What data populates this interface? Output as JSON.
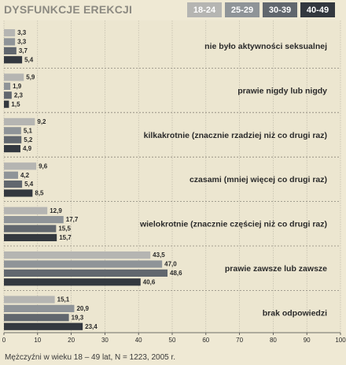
{
  "chart_data": {
    "type": "bar",
    "orientation": "horizontal",
    "title": "DYSFUNKCJE EREKCJI",
    "note": "Mężczyźni w wieku 18 – 49 lat, N = 1223, 2005 r.",
    "categories": [
      "nie było aktywności seksualnej",
      "prawie nigdy lub nigdy",
      "kilkakrotnie (znacznie rzadziej niż co drugi raz)",
      "czasami (mniej więcej co drugi raz)",
      "wielokrotnie (znacznie częściej niż co drugi raz)",
      "prawie zawsze lub zawsze",
      "brak odpowiedzi"
    ],
    "series": [
      {
        "name": "18-24",
        "color": "#b5b5b2",
        "values": [
          3.3,
          5.9,
          9.2,
          9.6,
          12.9,
          43.5,
          15.1
        ]
      },
      {
        "name": "25-29",
        "color": "#8f9498",
        "values": [
          3.3,
          1.9,
          5.1,
          4.2,
          17.7,
          47.0,
          20.9
        ]
      },
      {
        "name": "30-39",
        "color": "#61676e",
        "values": [
          3.7,
          2.3,
          5.2,
          5.4,
          15.5,
          48.6,
          19.3
        ]
      },
      {
        "name": "40-49",
        "color": "#33383f",
        "values": [
          5.4,
          1.5,
          4.9,
          8.5,
          15.7,
          40.6,
          23.4
        ]
      }
    ],
    "value_labels": [
      [
        "3,3",
        "3,3",
        "3,7",
        "5,4"
      ],
      [
        "5,9",
        "1,9",
        "2,3",
        "1,5"
      ],
      [
        "9,2",
        "5,1",
        "5,2",
        "4,9"
      ],
      [
        "9,6",
        "4,2",
        "5,4",
        "8,5"
      ],
      [
        "12,9",
        "17,7",
        "15,5",
        "15,7"
      ],
      [
        "43,5",
        "47,0",
        "48,6",
        "40,6"
      ],
      [
        "15,1",
        "20,9",
        "19,3",
        "23,4"
      ]
    ],
    "xlim": [
      0,
      100
    ],
    "xticks": [
      0,
      10,
      20,
      30,
      40,
      50,
      60,
      70,
      80,
      90,
      100
    ],
    "grid": true,
    "legend_position": "top-right"
  }
}
